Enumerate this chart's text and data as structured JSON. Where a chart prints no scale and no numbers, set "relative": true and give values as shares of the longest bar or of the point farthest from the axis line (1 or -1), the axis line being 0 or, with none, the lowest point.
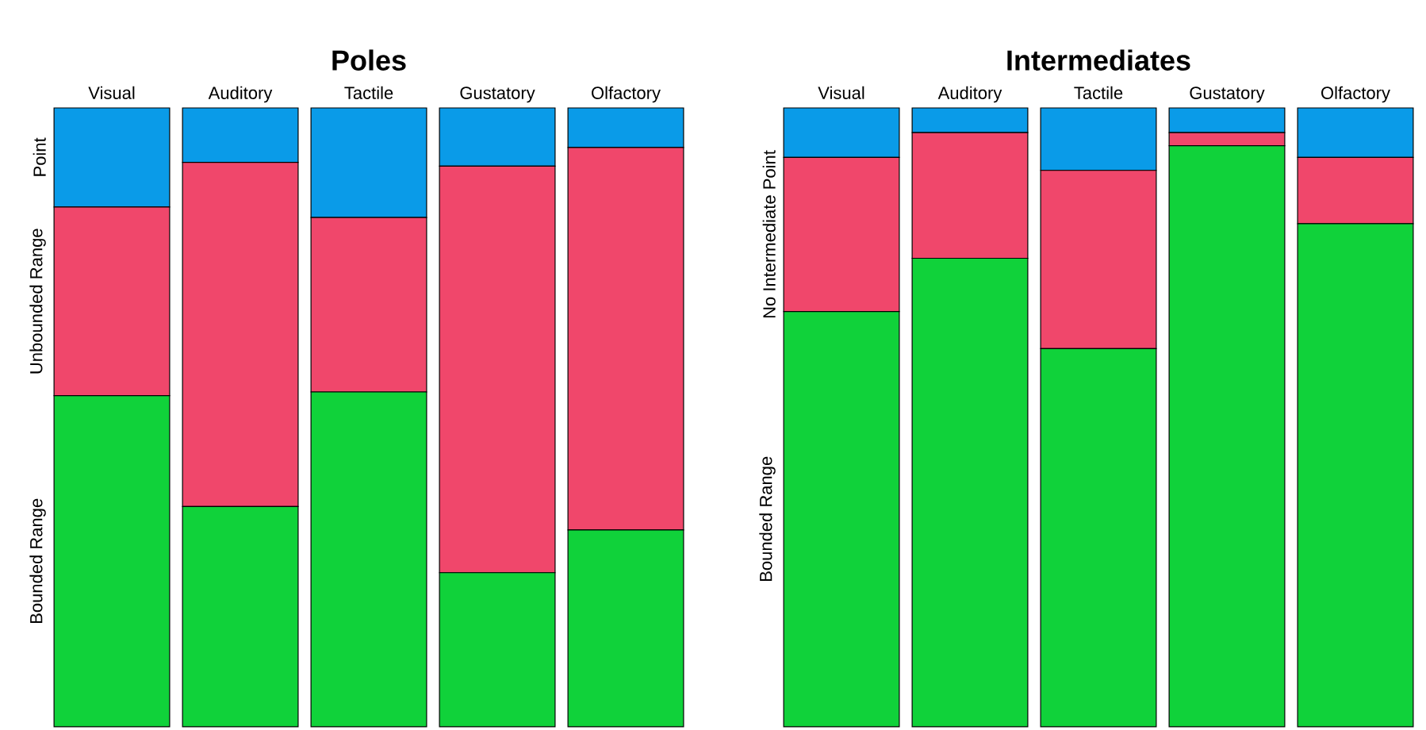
{
  "chart_data": [
    {
      "type": "bar",
      "title": "Poles",
      "stacked": true,
      "relative": true,
      "categories": [
        "Visual",
        "Auditory",
        "Tactile",
        "Gustatory",
        "Olfactory"
      ],
      "series": [
        {
          "name": "Bounded Range",
          "color": "#10d23a",
          "values": [
            0.535,
            0.356,
            0.541,
            0.249,
            0.318
          ]
        },
        {
          "name": "Unbounded Range",
          "color": "#f0476b",
          "values": [
            0.305,
            0.556,
            0.282,
            0.657,
            0.618
          ]
        },
        {
          "name": "Point",
          "color": "#0a9be8",
          "values": [
            0.16,
            0.088,
            0.177,
            0.094,
            0.064
          ]
        }
      ]
    },
    {
      "type": "bar",
      "title": "Intermediates",
      "stacked": true,
      "relative": true,
      "categories": [
        "Visual",
        "Auditory",
        "Tactile",
        "Gustatory",
        "Olfactory"
      ],
      "series": [
        {
          "name": "Bounded Range",
          "color": "#10d23a",
          "values": [
            0.671,
            0.757,
            0.611,
            0.939,
            0.813
          ]
        },
        {
          "name": "No Intermediate Point",
          "color": "#f0476b",
          "values": [
            0.249,
            0.203,
            0.288,
            0.021,
            0.107
          ]
        },
        {
          "color": "#0a9be8",
          "values": [
            0.08,
            0.04,
            0.101,
            0.04,
            0.08
          ]
        }
      ]
    }
  ]
}
